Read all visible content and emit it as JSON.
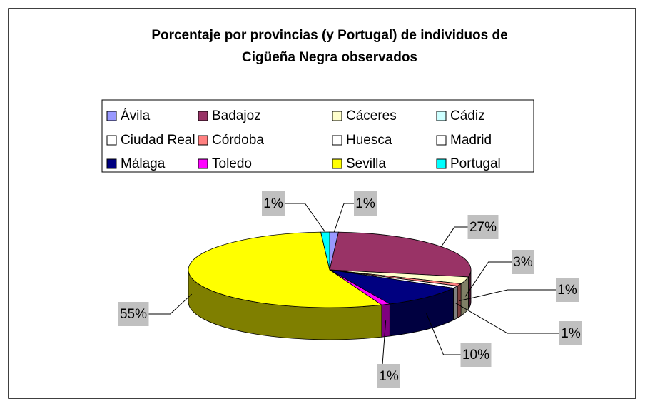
{
  "chart_data": {
    "type": "pie3d",
    "title": [
      "Porcentaje por provincias (y Portugal) de individuos de",
      "Cigüeña Negra observados"
    ],
    "categories": [
      "Ávila",
      "Badajoz",
      "Cáceres",
      "Cádiz",
      "Ciudad Real",
      "Córdoba",
      "Huesca",
      "Madrid",
      "Málaga",
      "Toledo",
      "Sevilla",
      "Portugal"
    ],
    "values": [
      1,
      27,
      3,
      null,
      null,
      1,
      null,
      1,
      10,
      1,
      55,
      1
    ],
    "value_labels": [
      "1%",
      "27%",
      "3%",
      null,
      null,
      "1%",
      null,
      "1%",
      "10%",
      "1%",
      "55%",
      "1%"
    ],
    "colors": [
      "#9999ff",
      "#993366",
      "#ffffcc",
      "#ccffff",
      "#ffffff",
      "#ff8080",
      "#ffffff",
      "#ffffff",
      "#000080",
      "#ff00ff",
      "#ffff00",
      "#00ffff"
    ],
    "legend": "top"
  }
}
